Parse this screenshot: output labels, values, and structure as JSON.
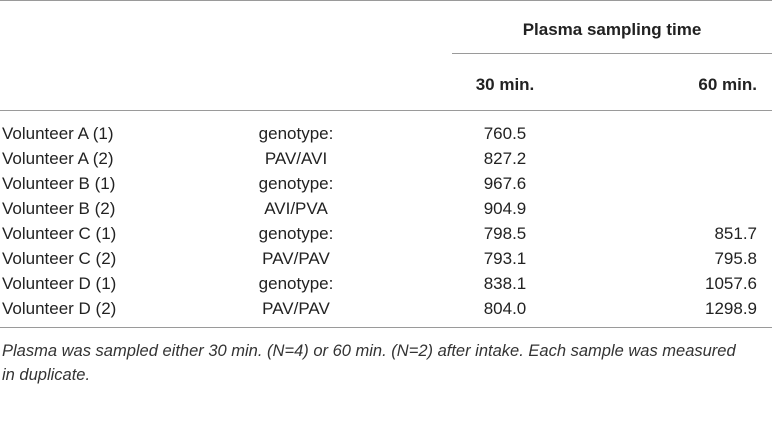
{
  "table": {
    "header": {
      "group": "Plasma sampling time",
      "columns": [
        "30 min.",
        "60 min."
      ]
    },
    "rows": [
      [
        "Volunteer A (1)",
        "genotype:",
        "760.5",
        null
      ],
      [
        "Volunteer A (2)",
        "PAV/AVI",
        "827.2",
        null
      ],
      [
        "Volunteer B (1)",
        "genotype:",
        "967.6",
        null
      ],
      [
        "Volunteer B (2)",
        "AVI/PVA",
        "904.9",
        null
      ],
      [
        "Volunteer C (1)",
        "genotype:",
        "798.5",
        "851.7"
      ],
      [
        "Volunteer C (2)",
        "PAV/PAV",
        "793.1",
        "795.8"
      ],
      [
        "Volunteer D (1)",
        "genotype:",
        "838.1",
        "1057.6"
      ],
      [
        "Volunteer D (2)",
        "PAV/PAV",
        "804.0",
        "1298.9"
      ]
    ],
    "footnote": "Plasma was sampled either 30 min. (N=4) or 60 min. (N=2) after intake. Each sample was measured in duplicate."
  }
}
